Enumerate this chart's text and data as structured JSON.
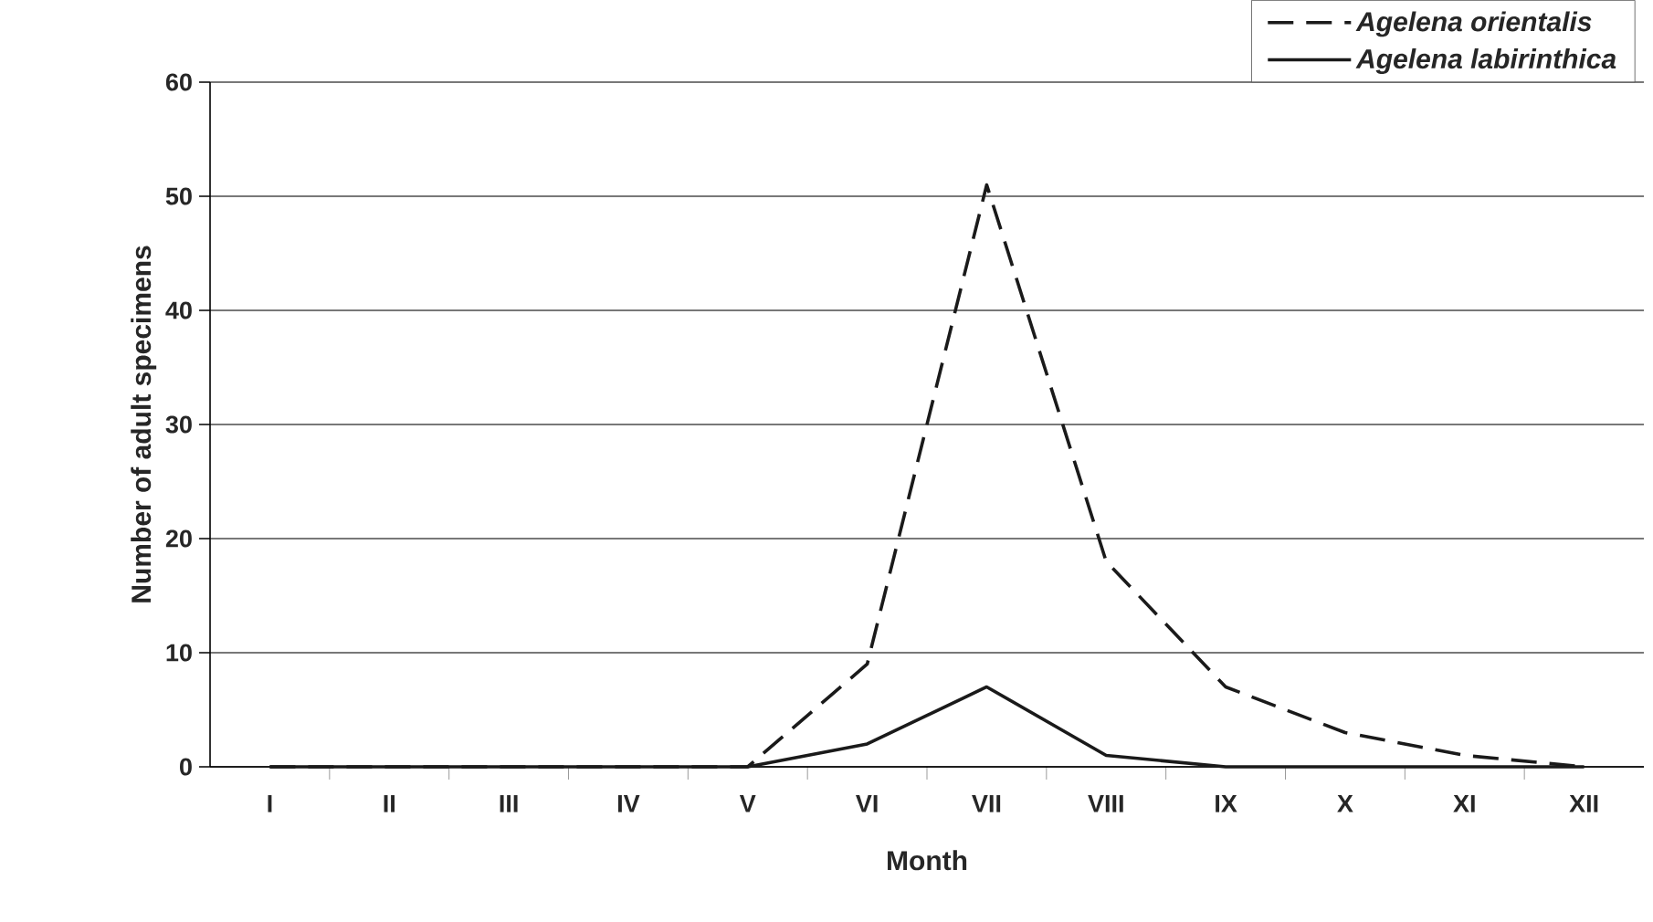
{
  "chart_data": {
    "type": "line",
    "xlabel": "Month",
    "ylabel": "Number of adult specimens",
    "categories": [
      "I",
      "II",
      "III",
      "IV",
      "V",
      "VI",
      "VII",
      "VIII",
      "IX",
      "X",
      "XI",
      "XII"
    ],
    "series": [
      {
        "name": "Agelena orientalis",
        "color": "#1a1a1a",
        "line_style": "dashed",
        "values": [
          0,
          0,
          0,
          0,
          0,
          9,
          51,
          18,
          7,
          3,
          1,
          0
        ]
      },
      {
        "name": "Agelena labirinthica",
        "color": "#1a1a1a",
        "line_style": "solid",
        "values": [
          0,
          0,
          0,
          0,
          0,
          2,
          7,
          1,
          0,
          0,
          0,
          0
        ]
      }
    ],
    "ylim": [
      0,
      60
    ],
    "yticks": [
      0,
      10,
      20,
      30,
      40,
      50,
      60
    ],
    "grid": "y",
    "legend": "top right",
    "marker": "none"
  }
}
